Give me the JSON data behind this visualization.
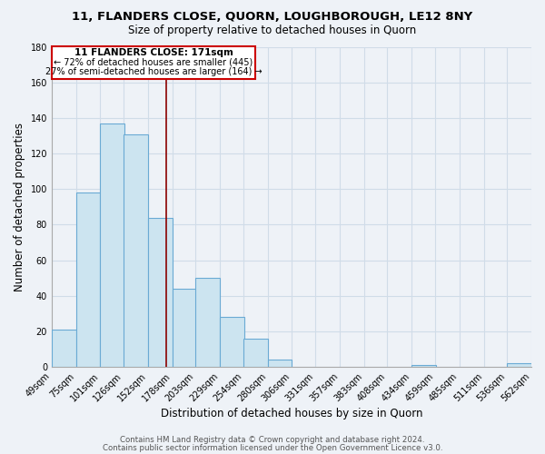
{
  "title": "11, FLANDERS CLOSE, QUORN, LOUGHBOROUGH, LE12 8NY",
  "subtitle": "Size of property relative to detached houses in Quorn",
  "xlabel": "Distribution of detached houses by size in Quorn",
  "ylabel": "Number of detached properties",
  "bar_left_edges": [
    49,
    75,
    101,
    126,
    152,
    178,
    203,
    229,
    254,
    280,
    306,
    331,
    357,
    383,
    408,
    434,
    459,
    485,
    511,
    536
  ],
  "bar_heights": [
    21,
    98,
    137,
    131,
    84,
    44,
    50,
    28,
    16,
    4,
    0,
    0,
    0,
    0,
    0,
    1,
    0,
    0,
    0,
    2
  ],
  "bin_width": 26,
  "bar_color": "#cce4f0",
  "bar_edge_color": "#6aaad4",
  "tick_labels": [
    "49sqm",
    "75sqm",
    "101sqm",
    "126sqm",
    "152sqm",
    "178sqm",
    "203sqm",
    "229sqm",
    "254sqm",
    "280sqm",
    "306sqm",
    "331sqm",
    "357sqm",
    "383sqm",
    "408sqm",
    "434sqm",
    "459sqm",
    "485sqm",
    "511sqm",
    "536sqm",
    "562sqm"
  ],
  "ylim": [
    0,
    180
  ],
  "yticks": [
    0,
    20,
    40,
    60,
    80,
    100,
    120,
    140,
    160,
    180
  ],
  "property_line_x": 171,
  "annotation_title": "11 FLANDERS CLOSE: 171sqm",
  "annotation_line1": "← 72% of detached houses are smaller (445)",
  "annotation_line2": "27% of semi-detached houses are larger (164) →",
  "background_color": "#eef2f7",
  "plot_bg_color": "#eef2f7",
  "grid_color": "#d0dce8",
  "footer_line1": "Contains HM Land Registry data © Crown copyright and database right 2024.",
  "footer_line2": "Contains public sector information licensed under the Open Government Licence v3.0."
}
